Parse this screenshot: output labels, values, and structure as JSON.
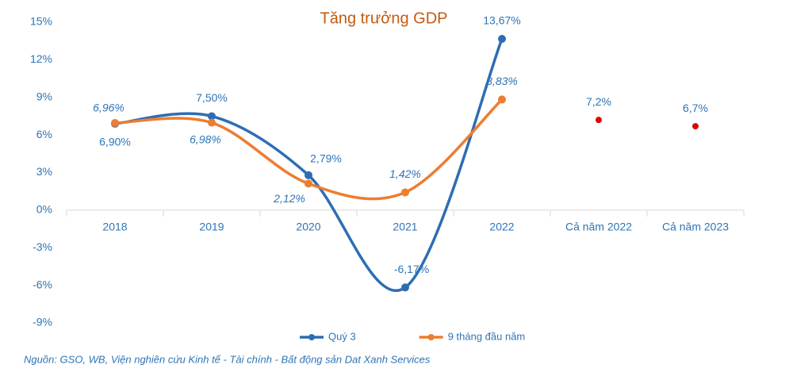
{
  "chart_data": {
    "type": "line",
    "title": "Tăng trưởng GDP",
    "source": "Nguồn: GSO, WB, Viện nghiên cứu Kinh tế - Tài chính - Bất động sản Dat Xanh Services",
    "categories": [
      "2018",
      "2019",
      "2020",
      "2021",
      "2022",
      "Cả năm 2022",
      "Cả năm 2023"
    ],
    "ylim": [
      -9,
      15
    ],
    "yticks": [
      {
        "value": -9,
        "label": "-9%"
      },
      {
        "value": -6,
        "label": "-6%"
      },
      {
        "value": -3,
        "label": "-3%"
      },
      {
        "value": 0,
        "label": "0%"
      },
      {
        "value": 3,
        "label": "3%"
      },
      {
        "value": 6,
        "label": "6%"
      },
      {
        "value": 9,
        "label": "9%"
      },
      {
        "value": 12,
        "label": "12%"
      },
      {
        "value": 15,
        "label": "15%"
      }
    ],
    "series": [
      {
        "name": "Quý 3",
        "color": "#2e6db4",
        "smooth": true,
        "values": [
          6.9,
          7.5,
          2.79,
          -6.17,
          13.67,
          null,
          null
        ],
        "value_labels": [
          "6,90%",
          "7,50%",
          "2,79%",
          "-6,17%",
          "13,67%",
          null,
          null
        ]
      },
      {
        "name": "9 tháng đầu năm",
        "color": "#ed7d31",
        "smooth": true,
        "values": [
          6.96,
          6.98,
          2.12,
          1.42,
          8.83,
          null,
          null
        ],
        "value_labels": [
          "6,96%",
          "6,98%",
          "2,12%",
          "1,42%",
          "8,83%",
          null,
          null
        ]
      },
      {
        "color": "#e00000",
        "values": [
          null,
          null,
          null,
          null,
          null,
          7.2,
          6.7
        ],
        "value_labels": [
          null,
          null,
          null,
          null,
          null,
          "7,2%",
          "6,7%"
        ]
      }
    ]
  }
}
